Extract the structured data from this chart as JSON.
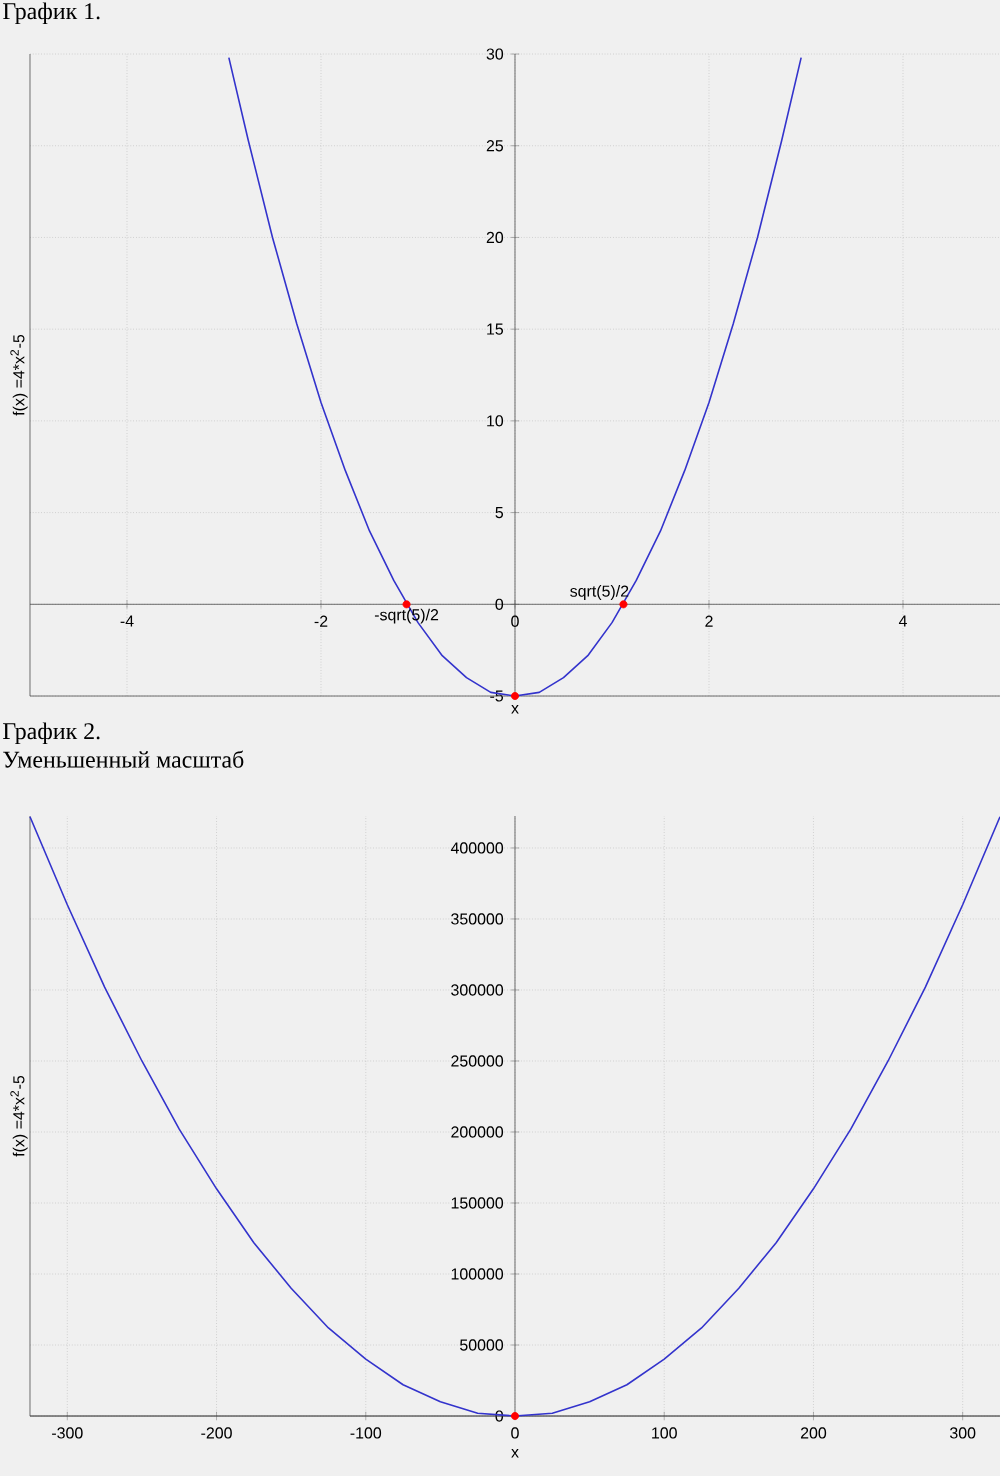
{
  "chart_data": [
    {
      "type": "line",
      "title": "График 1.",
      "xlabel": "x",
      "ylabel": "f(x) =4*x$^{2}$-5",
      "xlim": [
        -5,
        5
      ],
      "ylim": [
        -5,
        30
      ],
      "xticks": [
        -4,
        -2,
        0,
        2,
        4
      ],
      "yticks": [
        -5,
        0,
        5,
        10,
        15,
        20,
        25,
        30
      ],
      "grid": true,
      "series": [
        {
          "color": "#3333cc",
          "x": [
            -2.95,
            -2.75,
            -2.5,
            -2.25,
            -2,
            -1.75,
            -1.5,
            -1.25,
            -1,
            -0.75,
            -0.5,
            -0.25,
            0,
            0.25,
            0.5,
            0.75,
            1,
            1.25,
            1.5,
            1.75,
            2,
            2.25,
            2.5,
            2.75,
            2.95
          ],
          "values": [
            29.8,
            25.3,
            20,
            15.3,
            11,
            7.3,
            4,
            1.3,
            -1,
            -2.8,
            -4,
            -4.8,
            -5,
            -4.8,
            -4,
            -2.8,
            -1,
            1.3,
            4,
            7.3,
            11,
            15.3,
            20,
            25.3,
            29.8
          ]
        },
        {
          "type": "scatter",
          "color": "#ff0000",
          "marker": "circle",
          "x": [
            -1.118,
            1.118,
            0
          ],
          "values": [
            0,
            0,
            -5
          ]
        }
      ],
      "annotations": [
        {
          "text": "-sqrt(5)/2",
          "x": -1.118,
          "y": 0
        },
        {
          "text": "sqrt(5)/2",
          "x": 1.118,
          "y": 0
        }
      ]
    },
    {
      "type": "line",
      "title": "График 2.",
      "subtitle": "Уменьшенный масштаб",
      "xlabel": "x",
      "ylabel": "f(x) =4*x$^{2}$-5",
      "xlim": [
        -325,
        325
      ],
      "ylim": [
        0,
        422500
      ],
      "xticks": [
        -300,
        -200,
        -100,
        0,
        100,
        200,
        300
      ],
      "yticks": [
        0,
        50000,
        100000,
        150000,
        200000,
        250000,
        300000,
        350000,
        400000
      ],
      "grid": true,
      "series": [
        {
          "color": "#3333cc",
          "x": [
            -325,
            -300,
            -275,
            -250,
            -225,
            -200,
            -175,
            -150,
            -125,
            -100,
            -75,
            -50,
            -25,
            0,
            25,
            50,
            75,
            100,
            125,
            150,
            175,
            200,
            225,
            250,
            275,
            300,
            325
          ],
          "values": [
            422000,
            360000,
            302000,
            250000,
            202000,
            160000,
            122000,
            90000,
            62000,
            40000,
            22000,
            10000,
            2000,
            0,
            2000,
            10000,
            22000,
            40000,
            62000,
            90000,
            122000,
            160000,
            202000,
            250000,
            302000,
            360000,
            422000
          ]
        },
        {
          "type": "scatter",
          "color": "#ff0000",
          "marker": "circle",
          "x": [
            0
          ],
          "values": [
            0
          ]
        }
      ]
    }
  ]
}
